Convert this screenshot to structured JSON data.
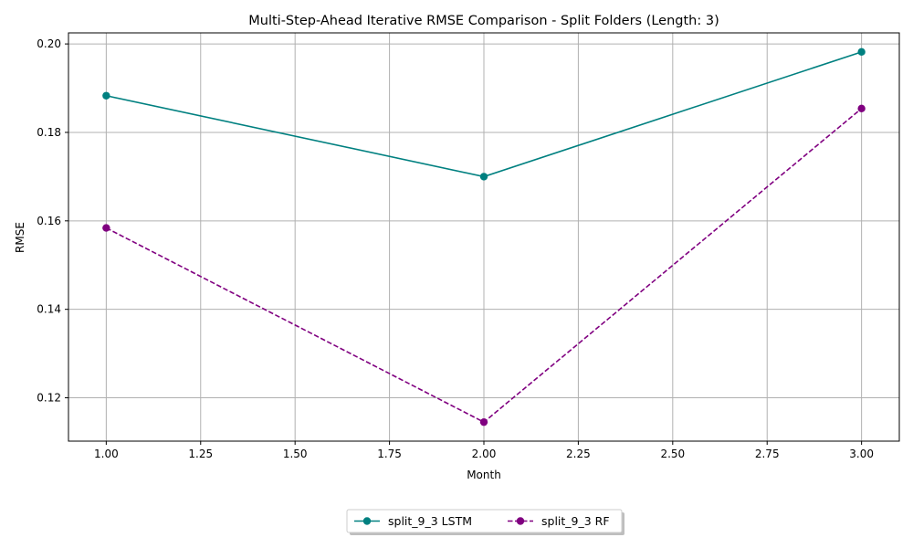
{
  "chart_data": {
    "type": "line",
    "title": "Multi-Step-Ahead Iterative RMSE Comparison - Split Folders (Length: 3)",
    "xlabel": "Month",
    "ylabel": "RMSE",
    "x": [
      1,
      2,
      3
    ],
    "xlim": [
      0.9,
      3.1
    ],
    "ylim": [
      0.1102,
      0.2025
    ],
    "xticks": [
      "1.00",
      "1.25",
      "1.50",
      "1.75",
      "2.00",
      "2.25",
      "2.50",
      "2.75",
      "3.00"
    ],
    "yticks": [
      "0.12",
      "0.14",
      "0.16",
      "0.18",
      "0.20"
    ],
    "grid": true,
    "legend_position": "bottom-center",
    "series": [
      {
        "name": "split_9_3 LSTM",
        "values": [
          0.1883,
          0.17,
          0.1982
        ],
        "color": "#008080",
        "line_style": "solid",
        "marker": "circle"
      },
      {
        "name": "split_9_3 RF",
        "values": [
          0.1584,
          0.1145,
          0.1854
        ],
        "color": "#800080",
        "line_style": "dashed",
        "marker": "circle"
      }
    ]
  }
}
